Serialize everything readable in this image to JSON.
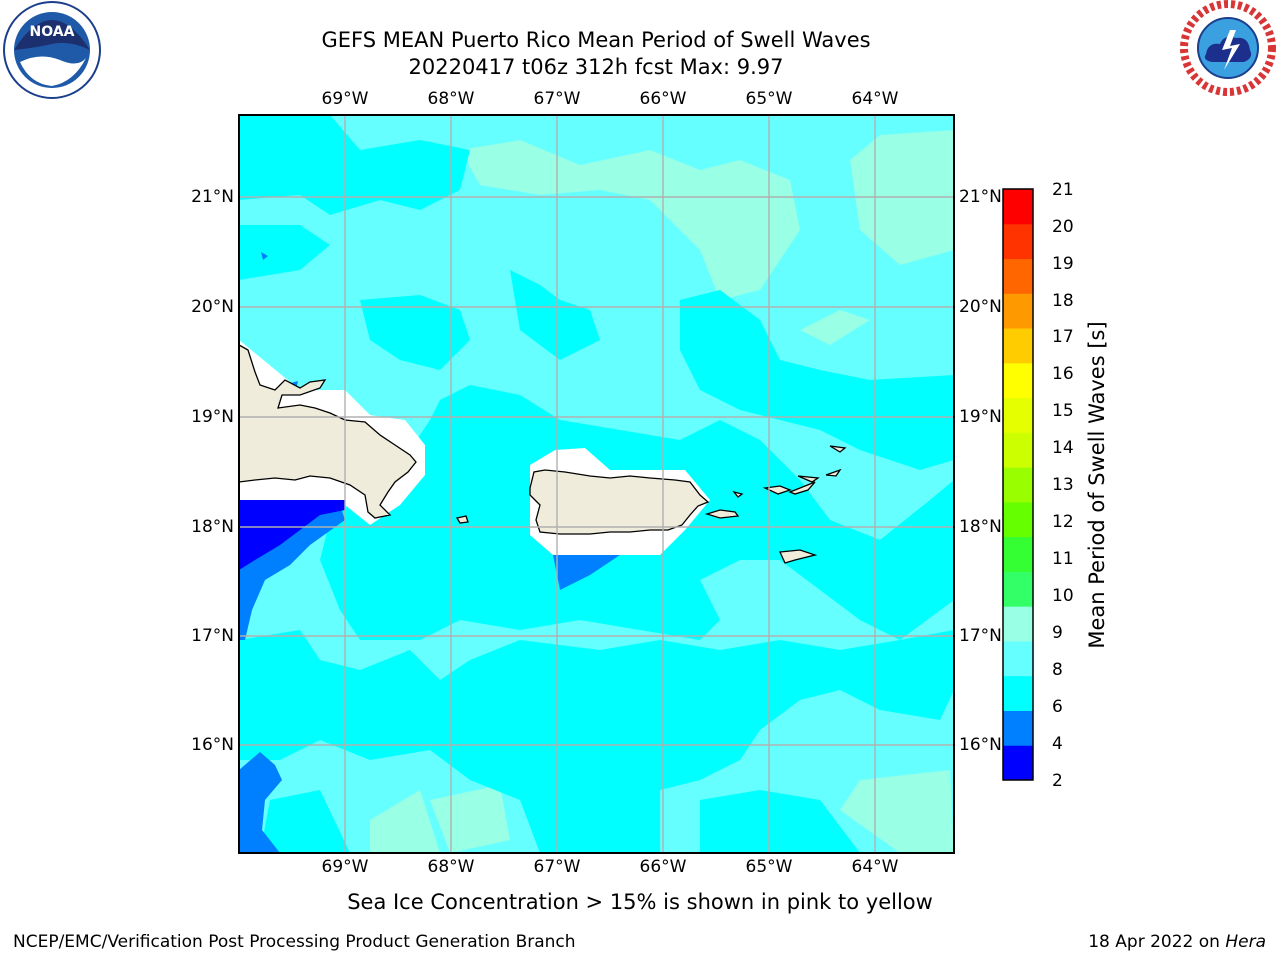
{
  "title": {
    "line1": "GEFS MEAN Puerto Rico Mean Period of Swell Waves",
    "line2": "20220417 t06z 312h fcst   Max: 9.97"
  },
  "map": {
    "lon_labels": [
      "69°W",
      "68°W",
      "67°W",
      "66°W",
      "65°W",
      "64°W"
    ],
    "lat_labels": [
      "21°N",
      "20°N",
      "19°N",
      "18°N",
      "17°N",
      "16°N"
    ],
    "colors": {
      "land": "#efecdc",
      "coast": "#000000",
      "grid": "#b0b0b0",
      "masked_white": "#ffffff"
    },
    "field_summary": "mostly 6-9 s swell period"
  },
  "colorbar": {
    "label": "Mean Period of Swell Waves [s]",
    "ticks": [
      "21",
      "20",
      "19",
      "18",
      "17",
      "16",
      "15",
      "14",
      "13",
      "12",
      "11",
      "10",
      "9",
      "8",
      "6",
      "4",
      "2"
    ],
    "bins": [
      {
        "color": "#0000ff"
      },
      {
        "color": "#0080ff"
      },
      {
        "color": "#00ffff"
      },
      {
        "color": "#66ffff"
      },
      {
        "color": "#99ffe5"
      },
      {
        "color": "#33ff66"
      },
      {
        "color": "#33ff33"
      },
      {
        "color": "#66ff00"
      },
      {
        "color": "#99ff00"
      },
      {
        "color": "#ccff00"
      },
      {
        "color": "#e5ff00"
      },
      {
        "color": "#ffff00"
      },
      {
        "color": "#ffcc00"
      },
      {
        "color": "#ff9900"
      },
      {
        "color": "#ff6600"
      },
      {
        "color": "#ff3300"
      },
      {
        "color": "#ff0000"
      }
    ]
  },
  "footnote": "Sea Ice Concentration > 15% is shown in pink to yellow",
  "credit": "NCEP/EMC/Verification Post Processing Product Generation Branch",
  "datestamp": {
    "text": "18 Apr 2022 on",
    "host": "Hera"
  },
  "logos": {
    "left": {
      "name": "noaa-logo",
      "text": "NOAA"
    },
    "right": {
      "name": "nws-logo",
      "text": "NATIONAL WEATHER SERVICE"
    }
  }
}
